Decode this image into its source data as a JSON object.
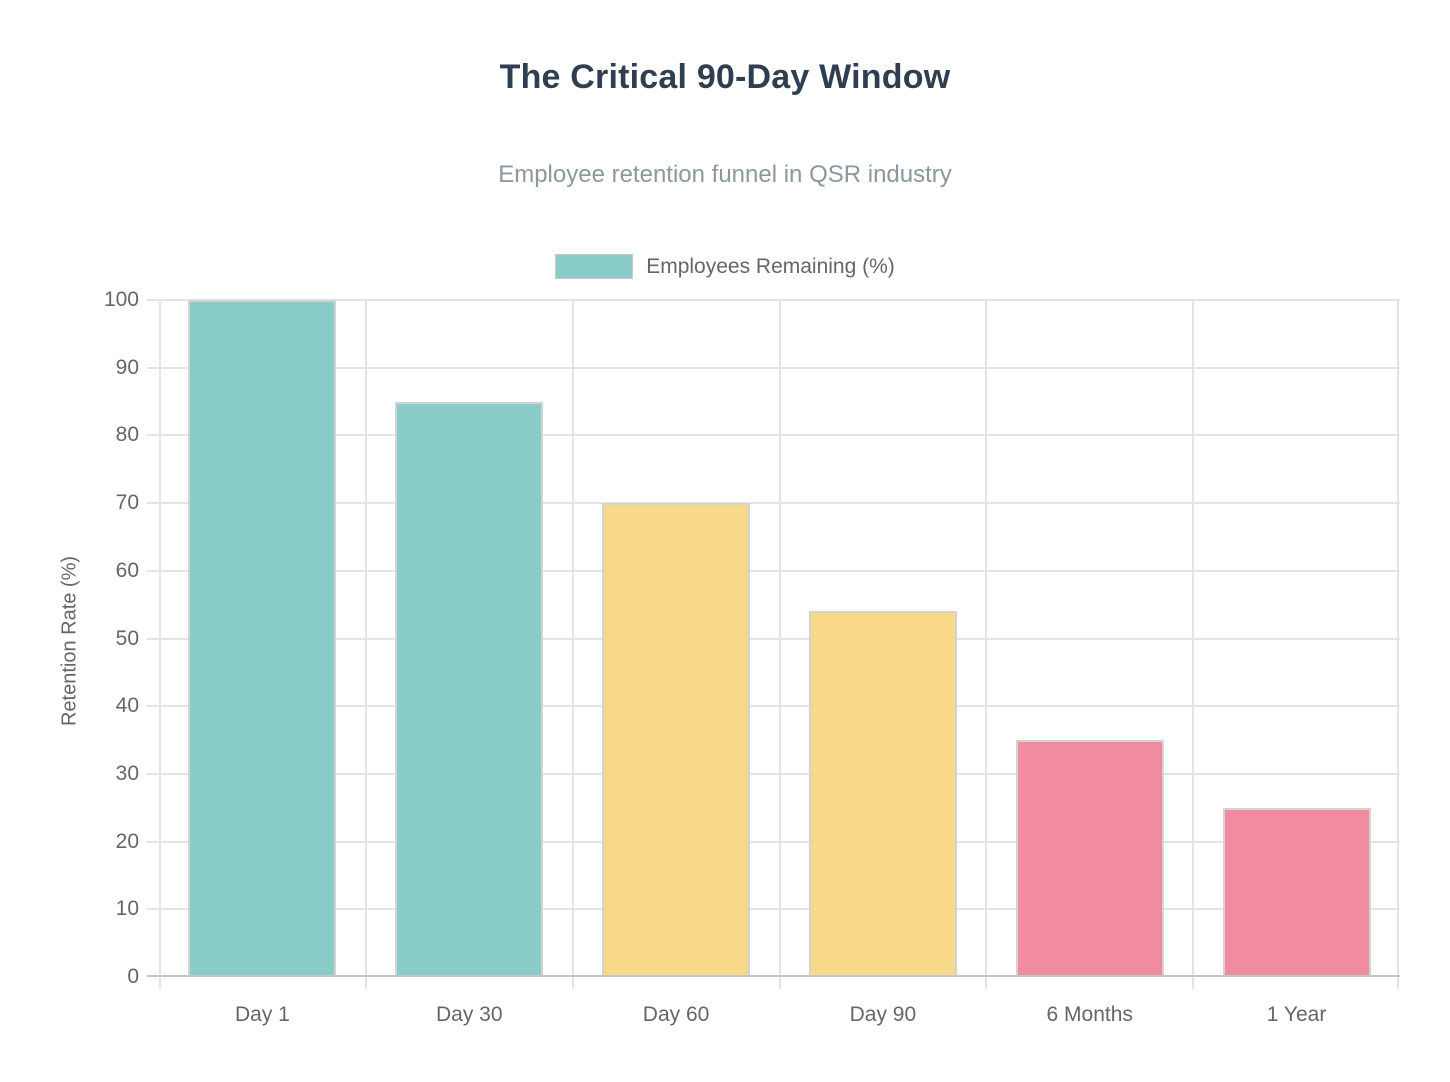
{
  "page": {
    "background": "#FFFFFF"
  },
  "chart_data": {
    "type": "bar",
    "title": "The Critical 90-Day Window",
    "subtitle": "Employee retention funnel in QSR industry",
    "legend_label": "Employees Remaining (%)",
    "legend_position": "top",
    "categories": [
      "Day 1",
      "Day 30",
      "Day 60",
      "Day 90",
      "6 Months",
      "1 Year"
    ],
    "values": [
      100,
      85,
      70,
      54,
      35,
      25
    ],
    "bar_colors": [
      "#8ACCC8",
      "#8ACCC8",
      "#F8D98A",
      "#F8D98A",
      "#F18CA0",
      "#F18CA0"
    ],
    "xlabel": "",
    "ylabel": "Retention Rate (%)",
    "ylim": [
      0,
      100
    ],
    "yticks": [
      0,
      10,
      20,
      30,
      40,
      50,
      60,
      70,
      80,
      90,
      100
    ],
    "grid": true,
    "colors": {
      "title": "#2F3F50",
      "subtitle": "#8C979E",
      "axis_text": "#666666",
      "gridline": "#E4E4E4",
      "axis_line": "#C6C6C6",
      "bar_border": "#D3D3D3"
    }
  }
}
